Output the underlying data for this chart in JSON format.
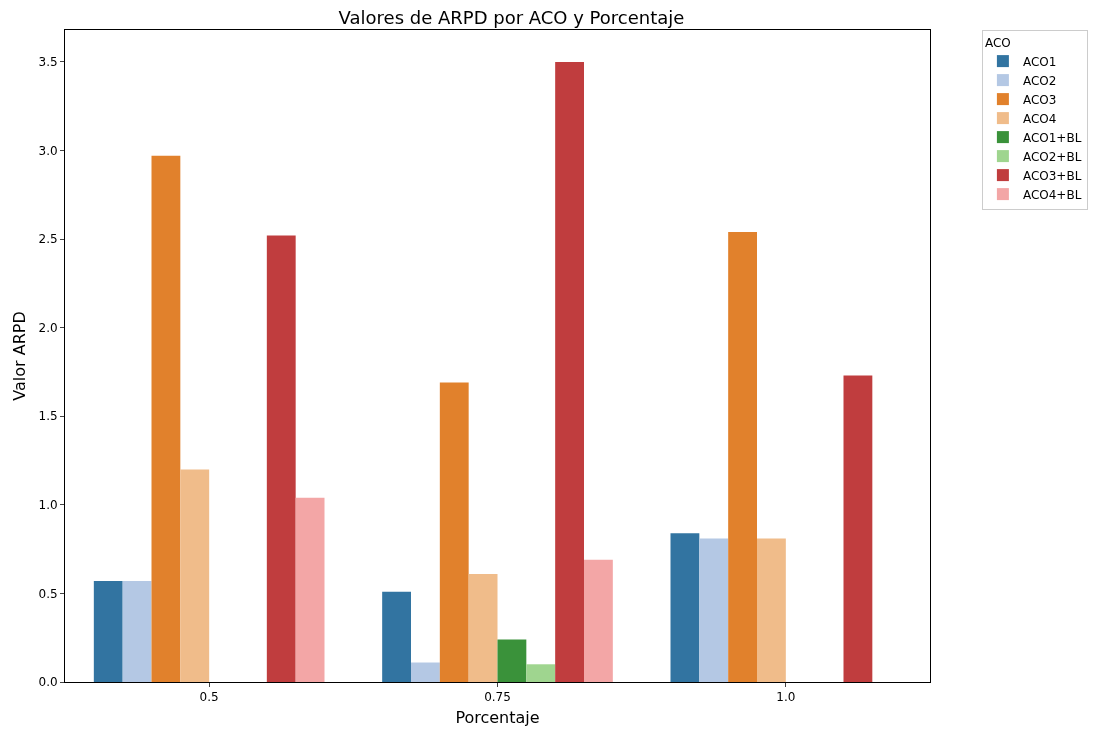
{
  "chart_data": {
    "type": "bar",
    "title": "Valores de ARPD por ACO y Porcentaje",
    "xlabel": "Porcentaje",
    "ylabel": "Valor ARPD",
    "legend_title": "ACO",
    "categories": [
      "0.5",
      "0.75",
      "1.0"
    ],
    "series": [
      {
        "name": "ACO1",
        "color": "#3274a1",
        "values": [
          0.57,
          0.51,
          0.84
        ]
      },
      {
        "name": "ACO2",
        "color": "#b4c8e4",
        "values": [
          0.57,
          0.11,
          0.81
        ]
      },
      {
        "name": "ACO3",
        "color": "#e1812c",
        "values": [
          2.97,
          1.69,
          2.54
        ]
      },
      {
        "name": "ACO4",
        "color": "#f0bc8a",
        "values": [
          1.2,
          0.61,
          0.81
        ]
      },
      {
        "name": "ACO1+BL",
        "color": "#3a923a",
        "values": [
          null,
          0.24,
          null
        ]
      },
      {
        "name": "ACO2+BL",
        "color": "#9fd58f",
        "values": [
          null,
          0.1,
          null
        ]
      },
      {
        "name": "ACO3+BL",
        "color": "#c03d3e",
        "values": [
          2.52,
          3.5,
          1.73
        ]
      },
      {
        "name": "ACO4+BL",
        "color": "#f3a6a6",
        "values": [
          1.04,
          0.69,
          null
        ]
      }
    ],
    "ylim": [
      0,
      3.68
    ],
    "yticks": [
      {
        "value": 0,
        "label": "0.0"
      },
      0.5,
      {
        "value": 1,
        "label": "1.0"
      },
      1.5,
      {
        "value": 2,
        "label": "2.0"
      },
      2.5,
      {
        "value": 3,
        "label": "3.0"
      },
      3.5
    ],
    "grid": false,
    "legend": "top right"
  }
}
